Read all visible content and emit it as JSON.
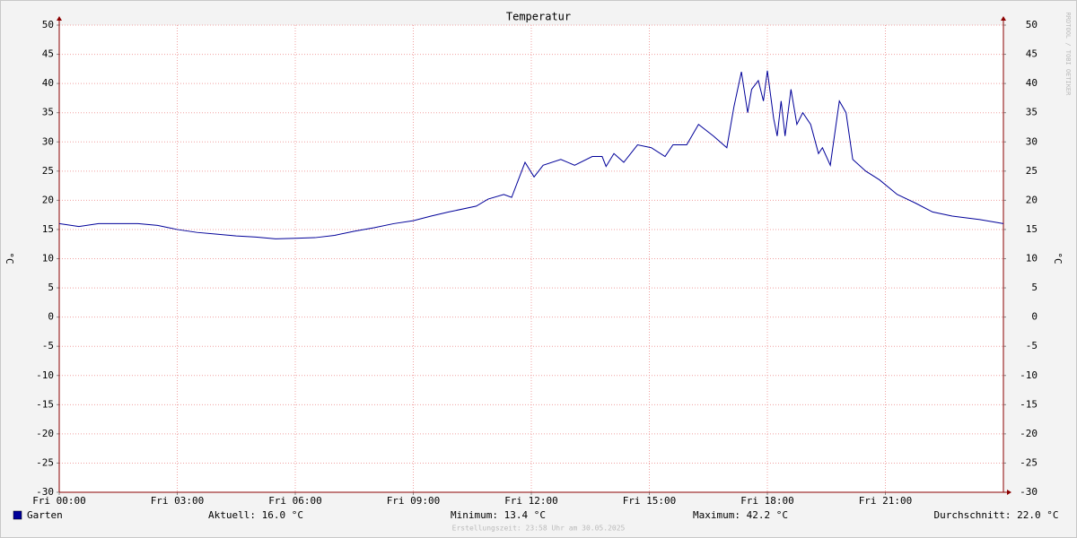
{
  "chart_data": {
    "type": "line",
    "title": "Temperatur",
    "y_label": "°C",
    "y2_label": "°C",
    "watermark": "RRDTOOL / TOBI OETIKER",
    "footer": "Erstellungszeit: 23:58 Uhr am 30.05.2025",
    "x": [
      0,
      0.5,
      1,
      2,
      2.5,
      3,
      3.5,
      4,
      4.5,
      5,
      5.5,
      6,
      6.5,
      7,
      7.5,
      8,
      8.5,
      9,
      9.45,
      9.9,
      10.6,
      10.9,
      11.3,
      11.5,
      11.84,
      12.07,
      12.3,
      12.75,
      13.1,
      13.55,
      13.8,
      13.9,
      14.1,
      14.35,
      14.7,
      15.05,
      15.4,
      15.6,
      15.95,
      16.25,
      16.63,
      16.97,
      17.15,
      17.34,
      17.5,
      17.6,
      17.77,
      17.9,
      18.0,
      18.16,
      18.25,
      18.35,
      18.45,
      18.6,
      18.75,
      18.9,
      19.1,
      19.3,
      19.4,
      19.6,
      19.83,
      20.0,
      20.17,
      20.5,
      20.85,
      21.3,
      21.77,
      22.2,
      22.7,
      23.4,
      24
    ],
    "series": [
      {
        "name": "Garten",
        "color": "#000099",
        "values": [
          16.0,
          15.5,
          16.0,
          16.0,
          15.7,
          15.0,
          14.5,
          14.2,
          13.9,
          13.7,
          13.4,
          13.5,
          13.6,
          14.0,
          14.7,
          15.3,
          16.0,
          16.5,
          17.3,
          18.0,
          19.0,
          20.2,
          21.0,
          20.5,
          26.5,
          24.0,
          26.0,
          27.0,
          26.0,
          27.5,
          27.5,
          25.8,
          28.0,
          26.5,
          29.5,
          29.0,
          27.5,
          29.5,
          29.5,
          33.0,
          31.0,
          29.0,
          36.0,
          42.0,
          35.0,
          39.0,
          40.5,
          37.0,
          42.2,
          34.0,
          31.0,
          37.0,
          31.0,
          39.0,
          33.0,
          35.0,
          33.0,
          28.0,
          29.0,
          26.0,
          37.0,
          35.0,
          27.0,
          25.0,
          23.5,
          21.0,
          19.5,
          18.0,
          17.3,
          16.7,
          16.0
        ]
      }
    ],
    "legend_stats": [
      "Aktuell: 16.0 °C",
      "Minimum: 13.4 °C",
      "Maximum: 42.2 °C",
      "Durchschnitt: 22.0 °C"
    ],
    "xlim": [
      0,
      24
    ],
    "xticks": [
      {
        "value": 0,
        "label": "Fri 00:00"
      },
      {
        "value": 3,
        "label": "Fri 03:00"
      },
      {
        "value": 6,
        "label": "Fri 06:00"
      },
      {
        "value": 9,
        "label": "Fri 09:00"
      },
      {
        "value": 12,
        "label": "Fri 12:00"
      },
      {
        "value": 15,
        "label": "Fri 15:00"
      },
      {
        "value": 18,
        "label": "Fri 18:00"
      },
      {
        "value": 21,
        "label": "Fri 21:00"
      }
    ],
    "ylim": [
      -30,
      50
    ],
    "yticks": [
      -30,
      -25,
      -20,
      -15,
      -10,
      -5,
      0,
      5,
      10,
      15,
      20,
      25,
      30,
      35,
      40,
      45,
      50
    ],
    "y2lim": [
      -30,
      50
    ],
    "y2ticks": [
      -30,
      -25,
      -20,
      -15,
      -10,
      -5,
      0,
      5,
      10,
      15,
      20,
      25,
      30,
      35,
      40,
      45,
      50
    ],
    "grid": true
  }
}
